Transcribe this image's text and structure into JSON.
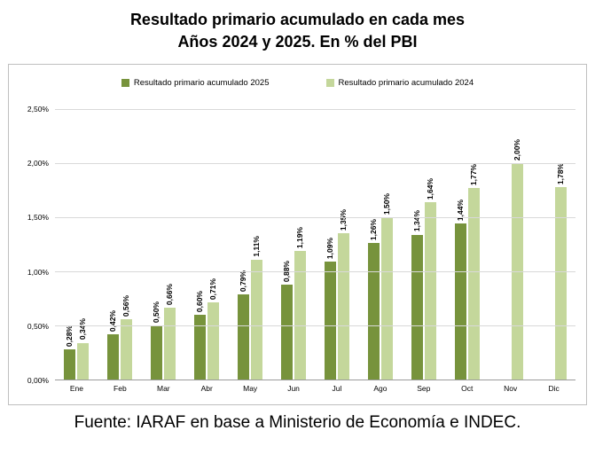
{
  "title": {
    "line1": "Resultado primario acumulado en cada mes",
    "line2": "Años 2024 y 2025. En % del PBI"
  },
  "footer": {
    "text": "Fuente: IARAF en base a Ministerio de Economía e INDEC."
  },
  "chart_data": {
    "type": "bar",
    "title": "Resultado primario acumulado en cada mes. Años 2024 y 2025. En % del PBI",
    "categories": [
      "Ene",
      "Feb",
      "Mar",
      "Abr",
      "May",
      "Jun",
      "Jul",
      "Ago",
      "Sep",
      "Oct",
      "Nov",
      "Dic"
    ],
    "series": [
      {
        "name": "Resultado primario acumulado 2025",
        "year": "2025",
        "color": "#77933C",
        "values": [
          0.28,
          0.42,
          0.5,
          0.6,
          0.79,
          0.88,
          1.09,
          1.26,
          1.34,
          1.44,
          null,
          null
        ],
        "labels": [
          "0,28%",
          "0,42%",
          "0,50%",
          "0,60%",
          "0,79%",
          "0,88%",
          "1,09%",
          "1,26%",
          "1,34%",
          "1,44%",
          null,
          null
        ]
      },
      {
        "name": "Resultado primario acumulado 2024",
        "year": "2024",
        "color": "#C4D79B",
        "values": [
          0.34,
          0.56,
          0.66,
          0.71,
          1.11,
          1.19,
          1.35,
          1.5,
          1.64,
          1.77,
          2.0,
          1.78
        ],
        "labels": [
          "0,34%",
          "0,56%",
          "0,66%",
          "0,71%",
          "1,11%",
          "1,19%",
          "1,35%",
          "1,50%",
          "1,64%",
          "1,77%",
          "2,00%",
          "1,78%"
        ]
      }
    ],
    "ylim": [
      0,
      2.5
    ],
    "ytick_values": [
      0,
      0.5,
      1.0,
      1.5,
      2.0,
      2.5
    ],
    "yticks": [
      "0,00%",
      "0,50%",
      "1,00%",
      "1,50%",
      "2,00%",
      "2,50%"
    ],
    "xlabel": "",
    "ylabel": "",
    "grid": true,
    "legend_position": "top"
  }
}
